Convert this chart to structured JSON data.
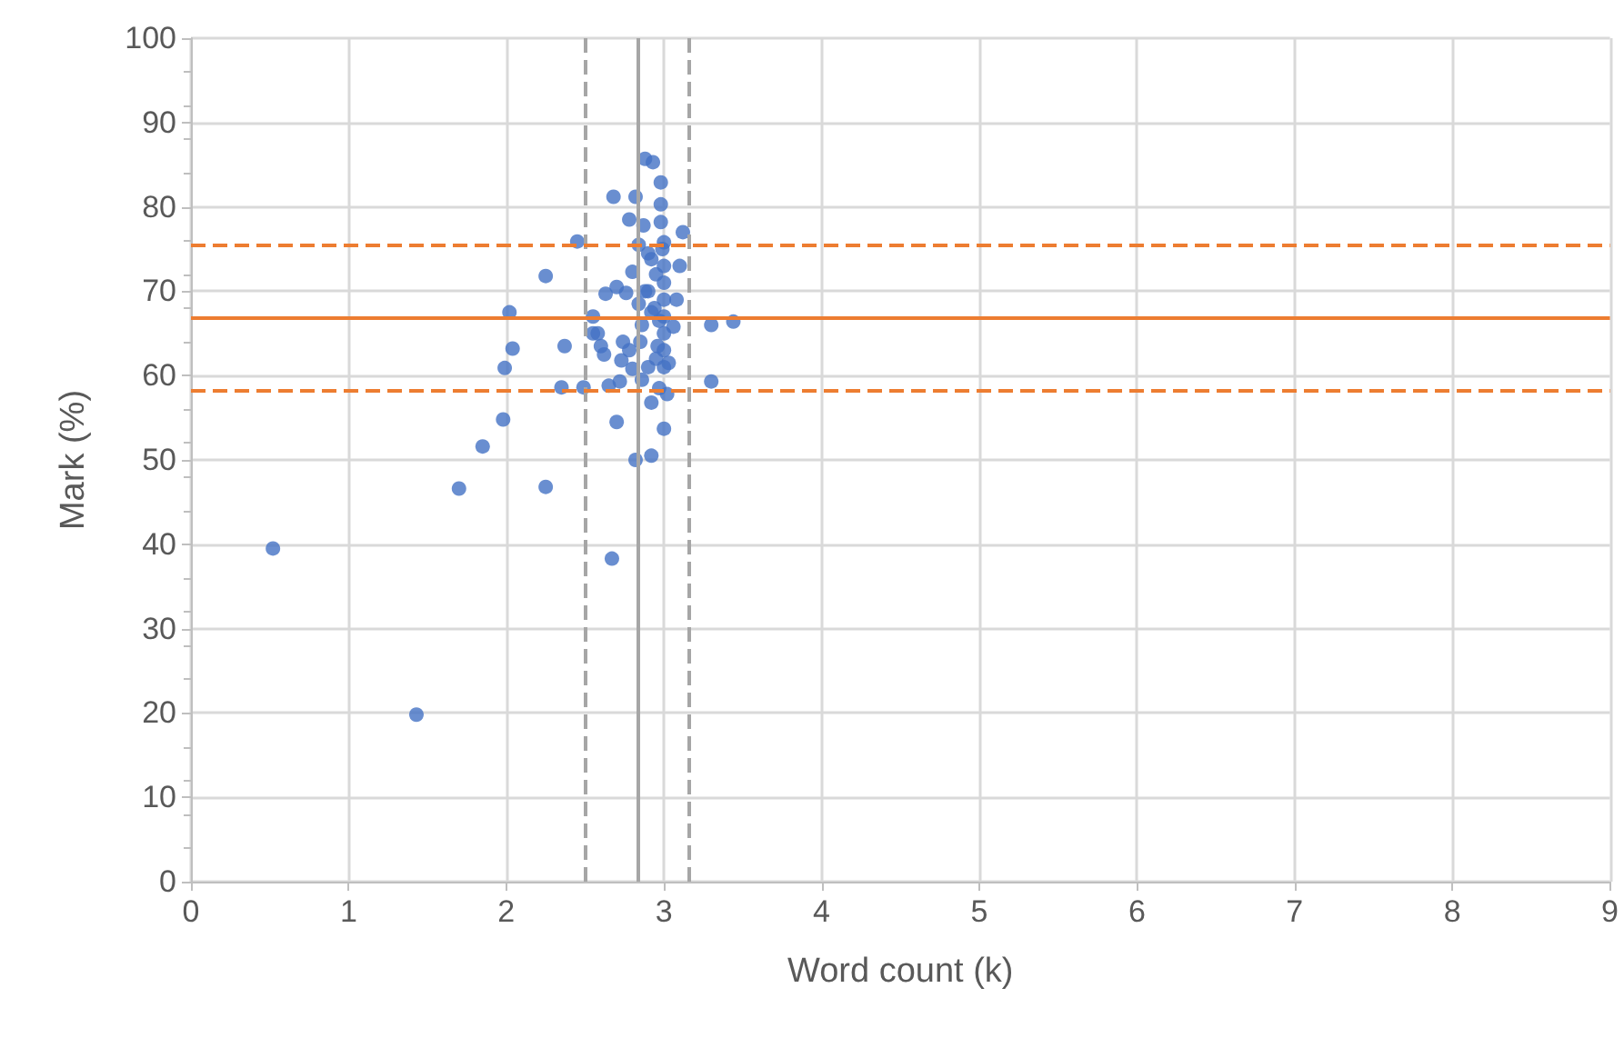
{
  "chart_data": {
    "type": "scatter",
    "xlabel": "Word count (k)",
    "ylabel": "Mark (%)",
    "xlim": [
      0,
      9
    ],
    "xticks": [
      0,
      1,
      2,
      3,
      4,
      5,
      6,
      7,
      8,
      9
    ],
    "ylim": [
      0,
      100
    ],
    "yticks": [
      0,
      10,
      20,
      30,
      40,
      50,
      60,
      70,
      80,
      90,
      100
    ],
    "grid": true,
    "marker": "circle",
    "series": [
      {
        "color": "#4472c4",
        "x": [
          0.52,
          1.43,
          1.7,
          1.85,
          1.98,
          1.99,
          2.02,
          2.04,
          2.25,
          2.25,
          2.35,
          2.37,
          2.45,
          2.49,
          2.55,
          2.55,
          2.58,
          2.6,
          2.62,
          2.63,
          2.65,
          2.67,
          2.68,
          2.7,
          2.7,
          2.72,
          2.73,
          2.74,
          2.76,
          2.78,
          2.8,
          2.8,
          2.82,
          2.82,
          2.84,
          2.86,
          2.87,
          2.88,
          2.9,
          2.9,
          2.9,
          2.92,
          2.92,
          2.93,
          2.94,
          2.95,
          2.96,
          2.97,
          2.98,
          2.98,
          2.98,
          2.99,
          3.0,
          3.0,
          3.0,
          3.0,
          3.0,
          3.0,
          3.0,
          3.0,
          3.02,
          3.03,
          3.06,
          3.08,
          3.1,
          3.12,
          3.3,
          3.3,
          3.44,
          2.85,
          2.88,
          2.92,
          2.95,
          2.97,
          3.0,
          2.84,
          2.78,
          2.92,
          2.86
        ],
        "values": [
          39.5,
          19.8,
          46.6,
          51.6,
          54.8,
          60.9,
          67.5,
          63.2,
          71.8,
          46.8,
          58.6,
          63.5,
          75.9,
          58.6,
          67,
          65,
          65,
          63.5,
          62.5,
          69.7,
          58.8,
          38.3,
          81.2,
          54.5,
          70.5,
          59.3,
          61.8,
          64,
          69.8,
          78.5,
          60.8,
          72.3,
          81.2,
          50,
          75.5,
          66,
          77.8,
          85.7,
          61,
          74.5,
          70,
          56.8,
          50.5,
          85.3,
          68,
          72,
          63.5,
          58.5,
          82.9,
          80.3,
          78.2,
          75,
          73,
          71,
          69,
          67,
          65,
          63,
          61,
          53.7,
          57.8,
          61.5,
          65.8,
          69,
          73,
          77,
          66,
          59.3,
          66.4,
          64,
          70,
          67.5,
          62,
          66.5,
          75.8,
          68.5,
          63,
          73.8,
          59.5
        ]
      }
    ],
    "ref_lines": [
      {
        "axis": "x",
        "value": 2.5,
        "color": "#a6a6a6",
        "line_style": "dashed"
      },
      {
        "axis": "x",
        "value": 2.84,
        "color": "#a6a6a6",
        "line_style": "solid"
      },
      {
        "axis": "x",
        "value": 3.16,
        "color": "#a6a6a6",
        "line_style": "dashed"
      },
      {
        "axis": "y",
        "value": 66.9,
        "color": "#ed7d31",
        "line_style": "solid"
      },
      {
        "axis": "y",
        "value": 75.5,
        "color": "#ed7d31",
        "line_style": "dashed"
      },
      {
        "axis": "y",
        "value": 58.3,
        "color": "#ed7d31",
        "line_style": "dashed"
      }
    ]
  }
}
